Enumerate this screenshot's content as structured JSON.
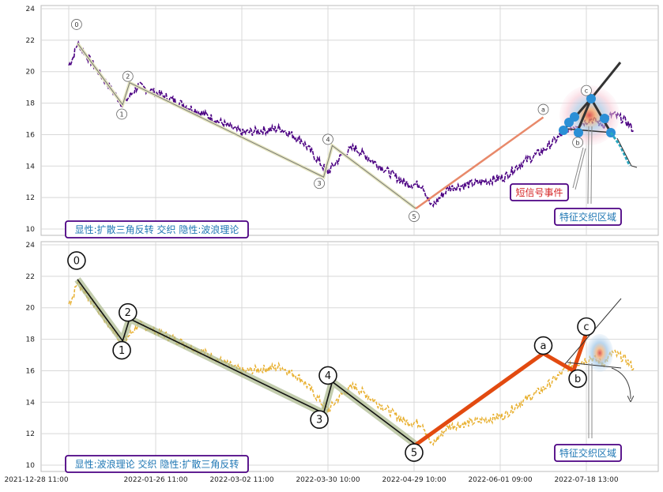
{
  "chart_data": [
    {
      "type": "line",
      "panel": "top",
      "ylim": [
        9.6,
        24.2
      ],
      "yticks": [
        10,
        12,
        14,
        16,
        18,
        20,
        22,
        24
      ],
      "grid": true,
      "price_series": {
        "color": "#4b0082",
        "style": "dashed",
        "anchors": [
          [
            0,
            20.4
          ],
          [
            0.05,
            20.9
          ],
          [
            0.1,
            21.8
          ],
          [
            0.3,
            20.3
          ],
          [
            0.62,
            17.9
          ],
          [
            0.8,
            19.1
          ],
          [
            1.2,
            18.2
          ],
          [
            1.6,
            17.2
          ],
          [
            2.0,
            16.1
          ],
          [
            2.3,
            16.3
          ],
          [
            2.45,
            16.4
          ],
          [
            2.7,
            15.6
          ],
          [
            3.0,
            13.6
          ],
          [
            3.15,
            14.6
          ],
          [
            3.3,
            15.2
          ],
          [
            3.55,
            14.2
          ],
          [
            3.9,
            12.9
          ],
          [
            4.1,
            12.8
          ],
          [
            4.2,
            11.4
          ],
          [
            4.4,
            12.6
          ],
          [
            4.8,
            13.0
          ],
          [
            5.05,
            13.3
          ],
          [
            5.2,
            14.0
          ],
          [
            5.5,
            15.0
          ],
          [
            5.8,
            16.4
          ],
          [
            6.05,
            17.0
          ],
          [
            6.2,
            16.6
          ],
          [
            6.3,
            17.3
          ],
          [
            6.45,
            16.9
          ],
          [
            6.55,
            16.3
          ]
        ]
      },
      "wave_labels": [
        {
          "label": "0",
          "x": 0.09,
          "y": 23.0
        },
        {
          "label": "1",
          "x": 0.61,
          "y": 17.3
        },
        {
          "label": "2",
          "x": 0.68,
          "y": 19.7
        },
        {
          "label": "3",
          "x": 2.9,
          "y": 12.9
        },
        {
          "label": "4",
          "x": 3.0,
          "y": 15.7
        },
        {
          "label": "5",
          "x": 4.0,
          "y": 10.8
        },
        {
          "label": "a",
          "x": 5.5,
          "y": 17.6
        },
        {
          "label": "b",
          "x": 5.9,
          "y": 15.5
        },
        {
          "label": "c",
          "x": 6.0,
          "y": 18.8
        }
      ],
      "annotations": [
        {
          "text": "显性:扩散三角反转 交织 隐性:波浪理论",
          "color": "#1f77b4",
          "border": "#4b0082"
        },
        {
          "text": "短信号事件",
          "color": "#d62728",
          "border": "#4b0082"
        },
        {
          "text": "特征交织区域",
          "color": "#1f77b4",
          "border": "#4b0082"
        }
      ]
    },
    {
      "type": "line",
      "panel": "bottom",
      "ylim": [
        9.6,
        24.2
      ],
      "yticks": [
        10,
        12,
        14,
        16,
        18,
        20,
        22,
        24
      ],
      "grid": true,
      "price_series": {
        "color": "#e8b030",
        "style": "dashed"
      },
      "wave_labels": [
        {
          "label": "0",
          "x": 0.09,
          "y": 23.0
        },
        {
          "label": "1",
          "x": 0.61,
          "y": 17.3
        },
        {
          "label": "2",
          "x": 0.68,
          "y": 19.7
        },
        {
          "label": "3",
          "x": 2.9,
          "y": 12.9
        },
        {
          "label": "4",
          "x": 3.0,
          "y": 15.7
        },
        {
          "label": "5",
          "x": 4.0,
          "y": 10.8
        },
        {
          "label": "a",
          "x": 5.5,
          "y": 17.6
        },
        {
          "label": "b",
          "x": 5.9,
          "y": 15.5
        },
        {
          "label": "c",
          "x": 6.0,
          "y": 18.8
        }
      ],
      "annotations": [
        {
          "text": "显性:波浪理论 交织 隐性:扩散三角反转",
          "color": "#1f77b4",
          "border": "#4b0082"
        },
        {
          "text": "特征交织区域",
          "color": "#1f77b4",
          "border": "#4b0082"
        }
      ]
    }
  ],
  "shared_x": {
    "ticks": [
      "2021-12-28 11:00",
      "2022-01-26 11:00",
      "2022-03-02 11:00",
      "2022-03-30 10:00",
      "2022-04-29 10:00",
      "2022-06-01 09:00",
      "2022-07-18 13:00"
    ]
  },
  "waves": {
    "impulse": [
      [
        0.1,
        21.8
      ],
      [
        0.62,
        17.9
      ],
      [
        0.7,
        19.3
      ],
      [
        2.95,
        13.3
      ],
      [
        3.05,
        15.3
      ],
      [
        4.02,
        11.3
      ]
    ],
    "correction": [
      [
        4.02,
        11.3
      ],
      [
        5.5,
        17.1
      ],
      [
        5.85,
        16.0
      ],
      [
        6.0,
        18.4
      ]
    ]
  }
}
